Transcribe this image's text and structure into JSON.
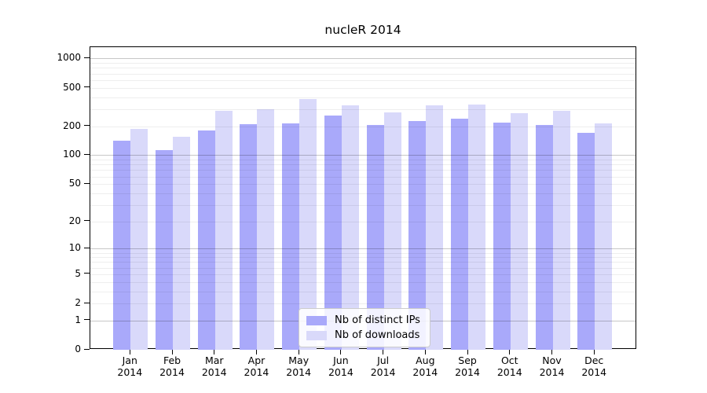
{
  "title": "nucleR 2014",
  "legend": {
    "items": [
      {
        "label": "Nb of distinct IPs",
        "color": "#a9a9fa"
      },
      {
        "label": "Nb of downloads",
        "color": "#d9d9fa"
      }
    ]
  },
  "chart_data": {
    "type": "bar",
    "title": "nucleR 2014",
    "categories": [
      "Jan",
      "Feb",
      "Mar",
      "Apr",
      "May",
      "Jun",
      "Jul",
      "Aug",
      "Sep",
      "Oct",
      "Nov",
      "Dec"
    ],
    "year_label": "2014",
    "series": [
      {
        "name": "Nb of distinct IPs",
        "color": "#a9a9fa",
        "values": [
          142,
          113,
          182,
          209,
          212,
          260,
          204,
          225,
          241,
          219,
          207,
          170
        ]
      },
      {
        "name": "Nb of downloads",
        "color": "#d9d9fa",
        "values": [
          189,
          155,
          286,
          298,
          385,
          330,
          279,
          331,
          333,
          274,
          286,
          212
        ]
      }
    ],
    "xlabel": "",
    "ylabel": "",
    "y_scale": "log1p",
    "ylim": [
      0,
      1300
    ],
    "y_ticks": [
      0,
      1,
      2,
      5,
      10,
      20,
      50,
      100,
      200,
      500,
      1000
    ],
    "grid_major": [
      1,
      10,
      100,
      1000
    ],
    "grid_minor": [
      2,
      3,
      4,
      5,
      6,
      7,
      8,
      9,
      20,
      30,
      40,
      50,
      60,
      70,
      80,
      90,
      200,
      300,
      400,
      500,
      600,
      700,
      800,
      900
    ],
    "grid": "on",
    "legend_position": "inside-bottom-center",
    "bar_colors": {
      "distinct_ips": "#a9a9fa",
      "downloads": "#d9d9fa"
    }
  }
}
